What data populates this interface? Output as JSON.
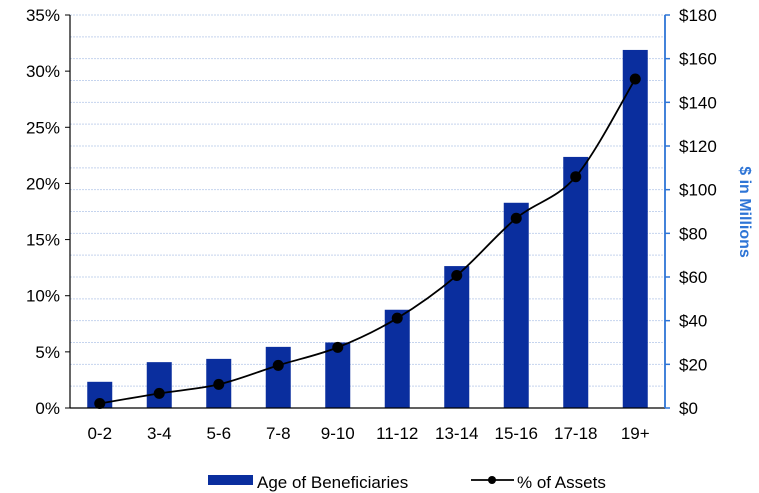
{
  "chart_data": {
    "type": "bar+line",
    "categories": [
      "0-2",
      "3-4",
      "5-6",
      "7-8",
      "9-10",
      "11-12",
      "13-14",
      "15-16",
      "17-18",
      "19+"
    ],
    "series": [
      {
        "name": "Age of Beneficiaries",
        "kind": "bar",
        "axis": "right",
        "values": [
          12,
          21,
          22.5,
          28,
          30,
          45,
          65,
          94,
          115,
          164
        ]
      },
      {
        "name": "% of Assets",
        "kind": "line",
        "axis": "left",
        "values": [
          0.4,
          1.3,
          2.1,
          3.8,
          5.4,
          8.0,
          11.8,
          16.9,
          20.6,
          29.3
        ]
      }
    ],
    "y_left": {
      "ticks": [
        "0%",
        "5%",
        "10%",
        "15%",
        "20%",
        "25%",
        "30%",
        "35%"
      ],
      "min": 0,
      "max": 35
    },
    "y_right": {
      "ticks": [
        "$0",
        "$20",
        "$40",
        "$60",
        "$80",
        "$100",
        "$120",
        "$140",
        "$160",
        "$180"
      ],
      "min": 0,
      "max": 180,
      "label": "$ in Millions"
    },
    "grid": true,
    "legend_position": "bottom"
  },
  "colors": {
    "bar": "#0A2E9E",
    "line": "#000000",
    "right_axis": "#2E75D6",
    "right_label": "#2E75D6",
    "grid": "#C5D4EE",
    "axis": "#000000"
  }
}
